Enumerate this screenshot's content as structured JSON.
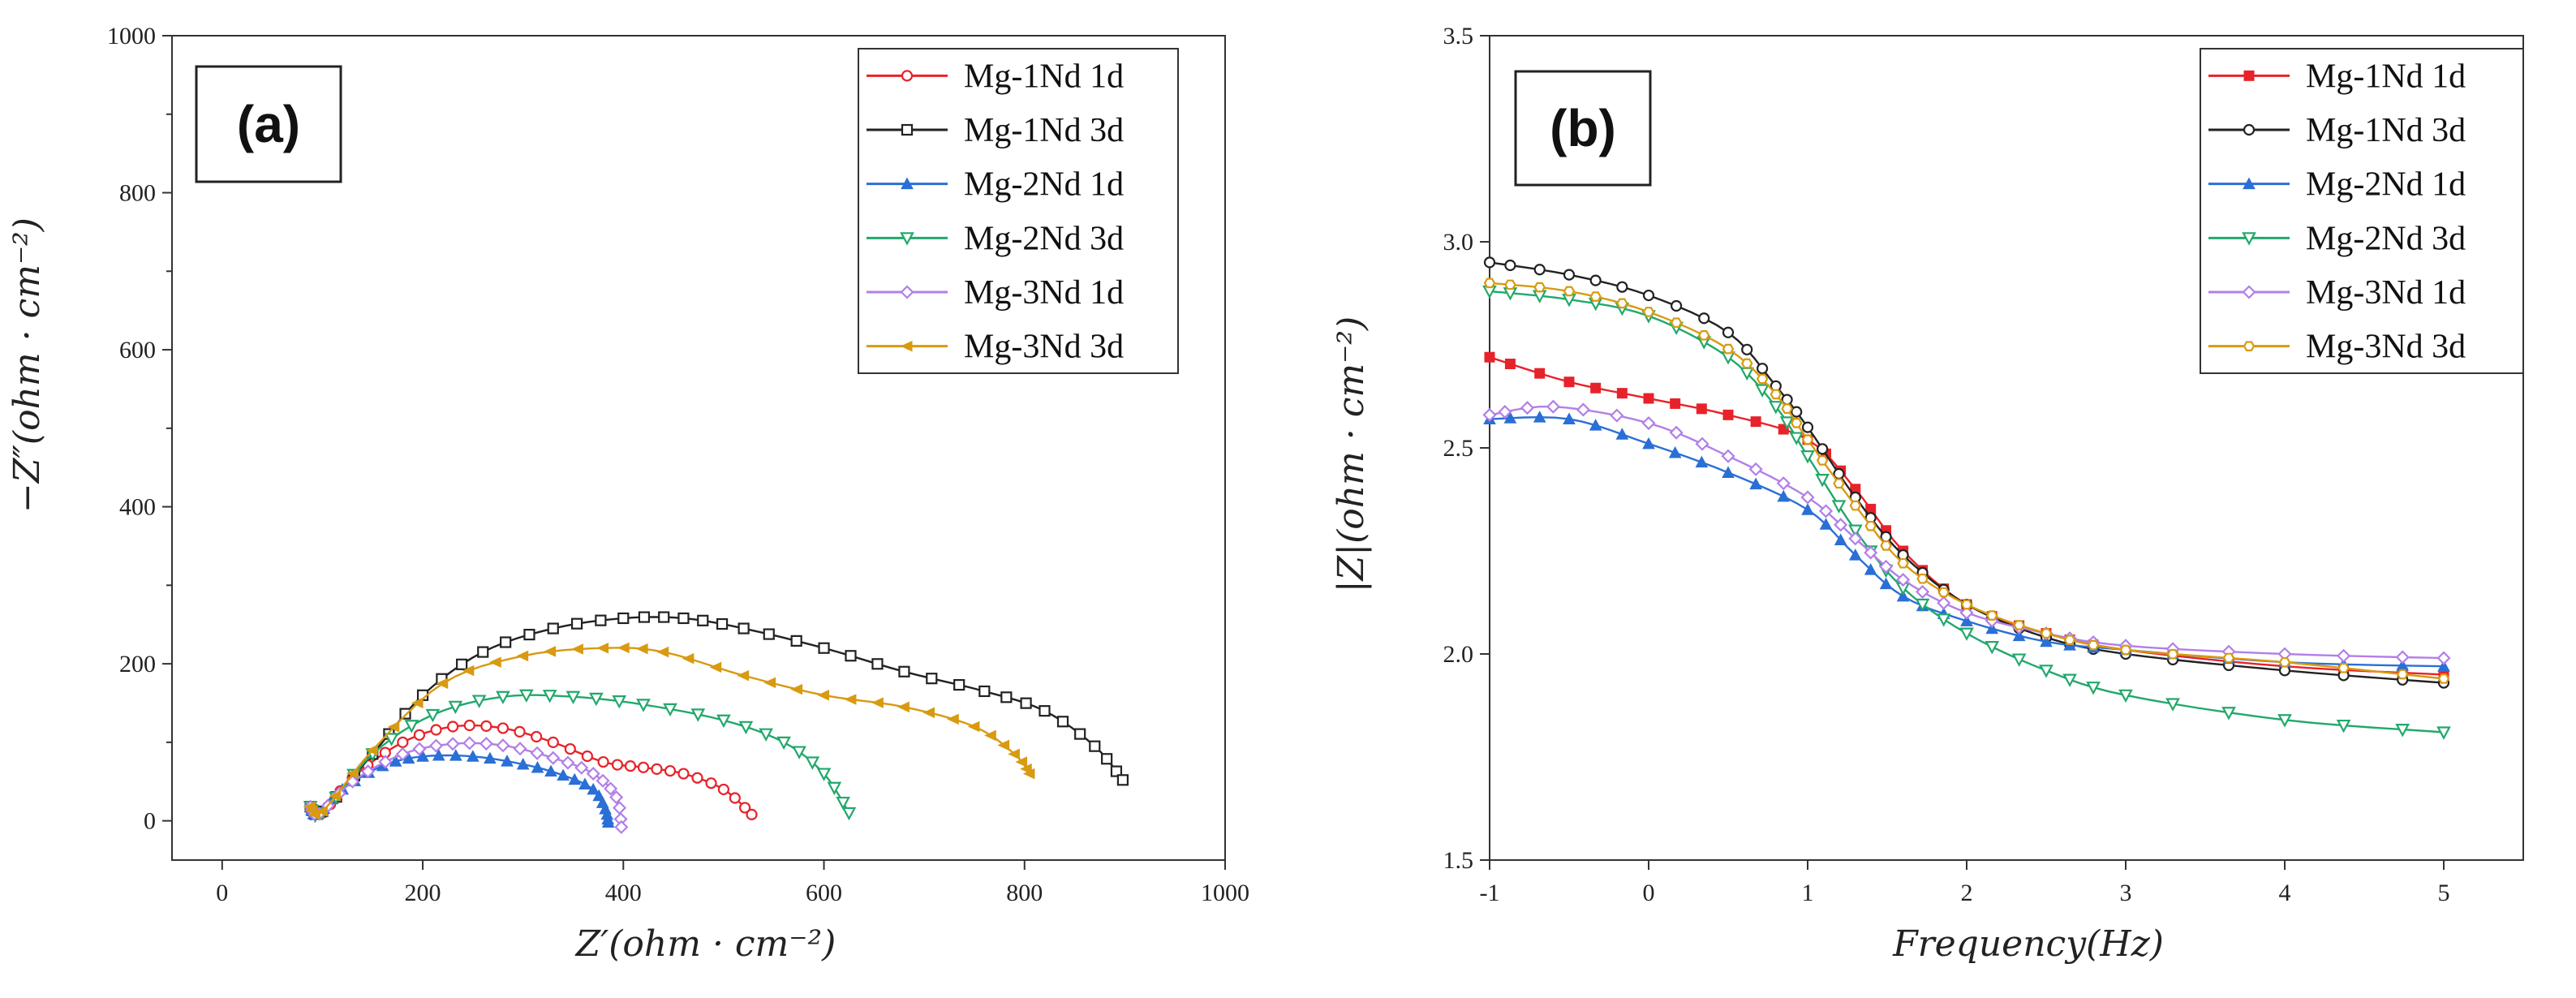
{
  "colors": {
    "Mg-1Nd 1d": "#e8222a",
    "Mg-1Nd 3d": "#222222",
    "Mg-2Nd 1d": "#2a6fd6",
    "Mg-2Nd 3d": "#21a86b",
    "Mg-3Nd 1d": "#b27fe8",
    "Mg-3Nd 3d": "#d89a10"
  },
  "chart_data": [
    {
      "type": "line",
      "panel_label": "(a)",
      "xlabel": "Z′(ohm · cm⁻²)",
      "ylabel": "−Z″(ohm · cm⁻²)",
      "xlim": [
        -50,
        1000
      ],
      "ylim": [
        -50,
        1000
      ],
      "xticks": [
        "0",
        "200",
        "400",
        "600",
        "800",
        "1000"
      ],
      "yticks": [
        "0",
        "200",
        "400",
        "600",
        "800",
        "1000"
      ],
      "legend_position": "top-right",
      "series": [
        {
          "name": "Mg-1Nd 1d",
          "marker": "circle",
          "x": [
            88,
            100,
            130,
            180,
            230,
            280,
            330,
            380,
            420,
            460,
            500,
            528
          ],
          "y": [
            18,
            10,
            55,
            100,
            120,
            118,
            100,
            75,
            68,
            60,
            40,
            8
          ]
        },
        {
          "name": "Mg-1Nd 3d",
          "marker": "square",
          "x": [
            88,
            100,
            150,
            200,
            260,
            330,
            400,
            460,
            520,
            600,
            680,
            760,
            820,
            870,
            898
          ],
          "y": [
            18,
            12,
            85,
            160,
            215,
            245,
            258,
            258,
            245,
            220,
            190,
            165,
            140,
            95,
            52
          ]
        },
        {
          "name": "Mg-2Nd 1d",
          "marker": "triangle",
          "x": [
            88,
            95,
            120,
            160,
            200,
            250,
            300,
            340,
            370,
            382,
            385
          ],
          "y": [
            18,
            8,
            40,
            70,
            82,
            82,
            72,
            58,
            40,
            15,
            -2
          ]
        },
        {
          "name": "Mg-2Nd 3d",
          "marker": "triangle-down",
          "x": [
            88,
            100,
            150,
            210,
            280,
            350,
            420,
            500,
            560,
            600,
            625
          ],
          "y": [
            18,
            10,
            85,
            135,
            158,
            158,
            148,
            128,
            100,
            60,
            10
          ]
        },
        {
          "name": "Mg-3Nd 1d",
          "marker": "diamond",
          "x": [
            88,
            97,
            130,
            180,
            230,
            280,
            330,
            370,
            393,
            398
          ],
          "y": [
            18,
            9,
            50,
            85,
            98,
            96,
            80,
            60,
            30,
            -8
          ]
        },
        {
          "name": "Mg-3Nd 3d",
          "marker": "left-triangle",
          "x": [
            88,
            100,
            150,
            220,
            300,
            380,
            440,
            520,
            600,
            680,
            750,
            790,
            805
          ],
          "y": [
            18,
            12,
            90,
            175,
            210,
            220,
            215,
            185,
            160,
            145,
            120,
            85,
            60
          ]
        }
      ]
    },
    {
      "type": "line",
      "panel_label": "(b)",
      "xlabel": "Frequency(Hz)",
      "ylabel": "|Z|(ohm · cm⁻²)",
      "xlim": [
        -1,
        5.5
      ],
      "ylim": [
        1.5,
        3.5
      ],
      "xticks": [
        "-1",
        "0",
        "1",
        "2",
        "3",
        "4",
        "5"
      ],
      "yticks": [
        "1.5",
        "2.0",
        "2.5",
        "3.0",
        "3.5"
      ],
      "legend_position": "top-right",
      "series": [
        {
          "name": "Mg-1Nd 1d",
          "marker": "square-filled",
          "x": [
            -1,
            -0.5,
            0,
            0.5,
            1,
            1.3,
            1.6,
            2,
            2.5,
            3,
            4,
            5
          ],
          "y": [
            2.72,
            2.66,
            2.62,
            2.58,
            2.52,
            2.4,
            2.25,
            2.12,
            2.05,
            2.01,
            1.97,
            1.95
          ]
        },
        {
          "name": "Mg-1Nd 3d",
          "marker": "circle",
          "x": [
            -1,
            -0.5,
            0,
            0.5,
            0.8,
            1,
            1.3,
            1.6,
            2,
            2.5,
            3,
            4,
            5
          ],
          "y": [
            2.95,
            2.92,
            2.87,
            2.78,
            2.65,
            2.55,
            2.38,
            2.24,
            2.12,
            2.04,
            2.0,
            1.96,
            1.93
          ]
        },
        {
          "name": "Mg-2Nd 1d",
          "marker": "triangle",
          "x": [
            -1,
            -0.5,
            0,
            0.5,
            1,
            1.3,
            1.6,
            2,
            2.5,
            3,
            4,
            5
          ],
          "y": [
            2.57,
            2.57,
            2.51,
            2.44,
            2.35,
            2.24,
            2.14,
            2.08,
            2.03,
            2.01,
            1.98,
            1.97
          ]
        },
        {
          "name": "Mg-2Nd 3d",
          "marker": "triangle-down",
          "x": [
            -1,
            -0.5,
            0,
            0.5,
            0.8,
            1,
            1.3,
            1.6,
            2,
            2.5,
            3,
            4,
            5
          ],
          "y": [
            2.88,
            2.86,
            2.82,
            2.72,
            2.6,
            2.48,
            2.3,
            2.16,
            2.05,
            1.96,
            1.9,
            1.84,
            1.81
          ]
        },
        {
          "name": "Mg-3Nd 1d",
          "marker": "diamond",
          "x": [
            -1,
            -0.6,
            0,
            0.5,
            1,
            1.3,
            1.6,
            2,
            2.5,
            3,
            4,
            5
          ],
          "y": [
            2.58,
            2.6,
            2.56,
            2.48,
            2.38,
            2.28,
            2.18,
            2.1,
            2.05,
            2.02,
            2.0,
            1.99
          ]
        },
        {
          "name": "Mg-3Nd 3d",
          "marker": "hexagon",
          "x": [
            -1,
            -0.5,
            0,
            0.5,
            0.8,
            1,
            1.3,
            1.6,
            2,
            2.5,
            3,
            4,
            5
          ],
          "y": [
            2.9,
            2.88,
            2.83,
            2.74,
            2.63,
            2.52,
            2.36,
            2.22,
            2.12,
            2.05,
            2.01,
            1.98,
            1.94
          ]
        }
      ]
    }
  ]
}
